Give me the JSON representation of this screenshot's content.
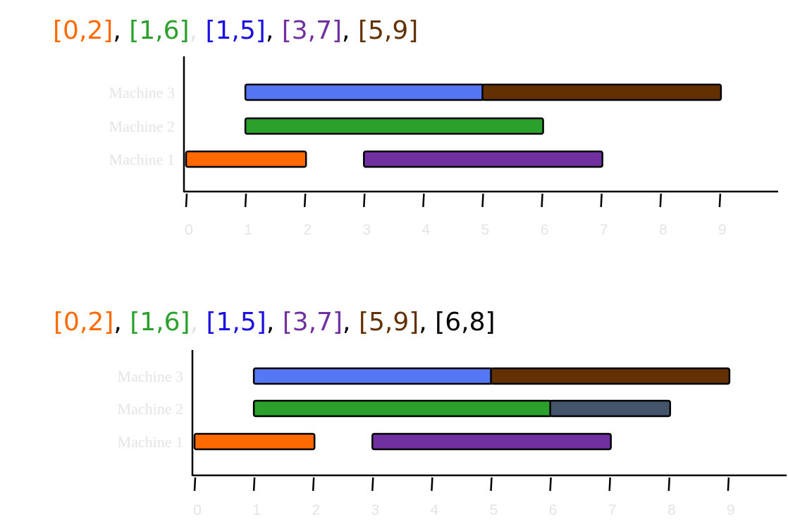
{
  "colors": {
    "orange": "#ff6a00",
    "green": "#2ca02c",
    "blue": "#5577f6",
    "blue_text": "#1a10e0",
    "purple": "#7030a0",
    "brown": "#633100",
    "slate": "#44546a",
    "black": "#000000",
    "comma": "#000000",
    "faint": "#e4e4e4"
  },
  "panels": [
    {
      "header": [
        {
          "text": "[0,2]",
          "color": "orange"
        },
        {
          "text": ", ",
          "color": "comma"
        },
        {
          "text": "[1,6]",
          "color": "green"
        },
        {
          "text": ", ",
          "color": "faint"
        },
        {
          "text": "[1,5]",
          "color": "blue_text"
        },
        {
          "text": ", ",
          "color": "comma"
        },
        {
          "text": "[3,7]",
          "color": "purple"
        },
        {
          "text": ", ",
          "color": "comma"
        },
        {
          "text": "[5,9]",
          "color": "brown"
        }
      ],
      "machines": [
        "Machine 3",
        "Machine 2",
        "Machine 1"
      ],
      "ticks": [
        "0",
        "1",
        "2",
        "3",
        "4",
        "5",
        "6",
        "7",
        "8",
        "9"
      ],
      "intervals": [
        {
          "machine": 1,
          "start": 0,
          "end": 2,
          "color": "orange"
        },
        {
          "machine": 1,
          "start": 3,
          "end": 7,
          "color": "purple"
        },
        {
          "machine": 2,
          "start": 1,
          "end": 6,
          "color": "green"
        },
        {
          "machine": 3,
          "start": 1,
          "end": 5,
          "color": "blue"
        },
        {
          "machine": 3,
          "start": 5,
          "end": 9,
          "color": "brown"
        }
      ]
    },
    {
      "header": [
        {
          "text": "[0,2]",
          "color": "orange"
        },
        {
          "text": ", ",
          "color": "comma"
        },
        {
          "text": "[1,6]",
          "color": "green"
        },
        {
          "text": ", ",
          "color": "faint"
        },
        {
          "text": "[1,5]",
          "color": "blue_text"
        },
        {
          "text": ", ",
          "color": "comma"
        },
        {
          "text": "[3,7]",
          "color": "purple"
        },
        {
          "text": ", ",
          "color": "comma"
        },
        {
          "text": "[5,9]",
          "color": "brown"
        },
        {
          "text": ", ",
          "color": "comma"
        },
        {
          "text": "[6,8]",
          "color": "black"
        }
      ],
      "machines": [
        "Machine 3",
        "Machine 2",
        "Machine 1"
      ],
      "ticks": [
        "0",
        "1",
        "2",
        "3",
        "4",
        "5",
        "6",
        "7",
        "8",
        "9"
      ],
      "intervals": [
        {
          "machine": 1,
          "start": 0,
          "end": 2,
          "color": "orange"
        },
        {
          "machine": 1,
          "start": 3,
          "end": 7,
          "color": "purple"
        },
        {
          "machine": 2,
          "start": 1,
          "end": 6,
          "color": "green"
        },
        {
          "machine": 2,
          "start": 6,
          "end": 8,
          "color": "slate"
        },
        {
          "machine": 3,
          "start": 1,
          "end": 5,
          "color": "blue"
        },
        {
          "machine": 3,
          "start": 5,
          "end": 9,
          "color": "brown"
        }
      ]
    }
  ]
}
